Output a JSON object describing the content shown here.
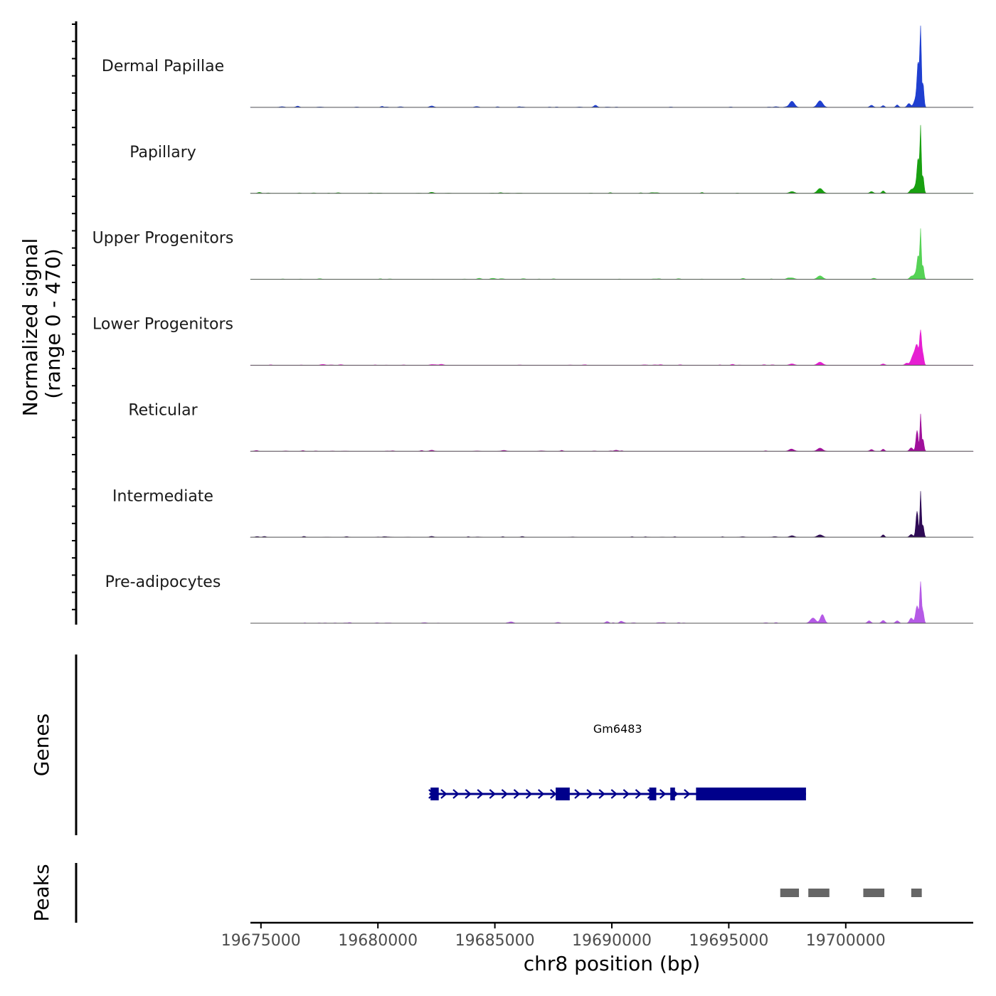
{
  "chart_data": {
    "type": "area",
    "chromosome": "chr8",
    "xlabel": "chr8 position (bp)",
    "xlim": [
      19674550,
      19705450
    ],
    "x_ticks": [
      19675000,
      19680000,
      19685000,
      19690000,
      19695000,
      19700000
    ],
    "x_tick_labels": [
      "19675000",
      "19680000",
      "19685000",
      "19690000",
      "19695000",
      "19700000"
    ],
    "coverage": {
      "ylabel_line1": "Normalized signal",
      "ylabel_line2": "(range 0 - 470)",
      "ylim": [
        0,
        470
      ],
      "tracks": [
        {
          "name": "Dermal Papillae",
          "color": "#1F3FD0",
          "peaks": [
            [
              19682300,
              8,
              120
            ],
            [
              19689300,
              12,
              100
            ],
            [
              19697700,
              35,
              150
            ],
            [
              19698900,
              38,
              160
            ],
            [
              19701100,
              12,
              100
            ],
            [
              19701600,
              10,
              80
            ],
            [
              19702200,
              14,
              80
            ],
            [
              19702700,
              22,
              100
            ],
            [
              19703000,
              50,
              120
            ],
            [
              19703100,
              240,
              70
            ],
            [
              19703200,
              470,
              40
            ],
            [
              19703300,
              140,
              60
            ]
          ]
        },
        {
          "name": "Papillary",
          "color": "#18A010",
          "peaks": [
            [
              19682300,
              6,
              120
            ],
            [
              19697700,
              10,
              150
            ],
            [
              19698900,
              28,
              160
            ],
            [
              19701100,
              10,
              100
            ],
            [
              19701600,
              14,
              80
            ],
            [
              19702800,
              20,
              100
            ],
            [
              19703000,
              45,
              120
            ],
            [
              19703100,
              180,
              70
            ],
            [
              19703200,
              360,
              40
            ],
            [
              19703300,
              100,
              60
            ]
          ]
        },
        {
          "name": "Upper Progenitors",
          "color": "#55D255",
          "peaks": [
            [
              19697700,
              8,
              150
            ],
            [
              19698900,
              20,
              160
            ],
            [
              19701200,
              6,
              100
            ],
            [
              19702800,
              16,
              100
            ],
            [
              19703000,
              35,
              120
            ],
            [
              19703100,
              120,
              70
            ],
            [
              19703200,
              270,
              40
            ],
            [
              19703300,
              80,
              60
            ]
          ]
        },
        {
          "name": "Lower Progenitors",
          "color": "#E61FD2",
          "peaks": [
            [
              19682300,
              4,
              120
            ],
            [
              19697700,
              8,
              150
            ],
            [
              19698900,
              18,
              160
            ],
            [
              19701600,
              8,
              100
            ],
            [
              19702600,
              12,
              100
            ],
            [
              19702900,
              60,
              140
            ],
            [
              19703050,
              100,
              100
            ],
            [
              19703200,
              190,
              60
            ],
            [
              19703300,
              60,
              60
            ]
          ]
        },
        {
          "name": "Reticular",
          "color": "#A0109B",
          "peaks": [
            [
              19682300,
              6,
              120
            ],
            [
              19697700,
              10,
              150
            ],
            [
              19698900,
              18,
              160
            ],
            [
              19701100,
              10,
              100
            ],
            [
              19701600,
              12,
              80
            ],
            [
              19702800,
              20,
              100
            ],
            [
              19703050,
              120,
              70
            ],
            [
              19703200,
              210,
              40
            ],
            [
              19703300,
              70,
              60
            ]
          ]
        },
        {
          "name": "Intermediate",
          "color": "#2E0A55",
          "peaks": [
            [
              19682300,
              5,
              120
            ],
            [
              19697700,
              8,
              150
            ],
            [
              19698900,
              14,
              160
            ],
            [
              19701600,
              14,
              80
            ],
            [
              19702800,
              16,
              100
            ],
            [
              19703050,
              150,
              70
            ],
            [
              19703200,
              260,
              40
            ],
            [
              19703300,
              70,
              60
            ]
          ]
        },
        {
          "name": "Pre-adipocytes",
          "color": "#B55AE6",
          "peaks": [
            [
              19685700,
              8,
              120
            ],
            [
              19689800,
              10,
              100
            ],
            [
              19690400,
              12,
              100
            ],
            [
              19698600,
              30,
              160
            ],
            [
              19699000,
              50,
              120
            ],
            [
              19701000,
              14,
              100
            ],
            [
              19701600,
              16,
              100
            ],
            [
              19702200,
              14,
              100
            ],
            [
              19702800,
              30,
              100
            ],
            [
              19703050,
              100,
              90
            ],
            [
              19703200,
              230,
              50
            ],
            [
              19703300,
              70,
              60
            ]
          ]
        }
      ]
    },
    "genes": {
      "ylabel": "Genes",
      "color": "#00008B",
      "items": [
        {
          "name": "Gm6483",
          "strand": "+",
          "start": 19682200,
          "end": 19698300,
          "exons": [
            [
              19682250,
              19682600
            ],
            [
              19687600,
              19688200
            ],
            [
              19691600,
              19691900
            ],
            [
              19692500,
              19692700
            ],
            [
              19693600,
              19698300
            ]
          ]
        }
      ]
    },
    "peaks_track": {
      "ylabel": "Peaks",
      "color": "#666666",
      "regions": [
        [
          19697200,
          19698000
        ],
        [
          19698400,
          19699300
        ],
        [
          19700750,
          19701650
        ],
        [
          19702800,
          19703250
        ]
      ]
    }
  }
}
